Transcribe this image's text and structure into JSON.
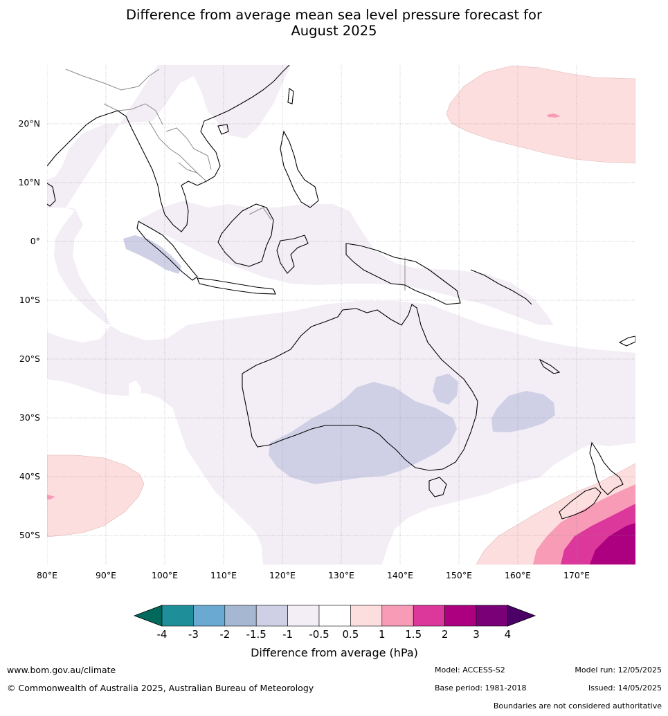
{
  "title": {
    "line1": "Difference from average mean sea level pressure forecast for",
    "line2": "August 2025"
  },
  "map": {
    "lon_ticks": [
      "80°E",
      "90°E",
      "100°E",
      "110°E",
      "120°E",
      "130°E",
      "140°E",
      "150°E",
      "160°E",
      "170°E"
    ],
    "lat_ticks": [
      "20°N",
      "10°N",
      "0°",
      "10°S",
      "20°S",
      "30°S",
      "40°S",
      "50°S"
    ]
  },
  "legend": {
    "title": "Difference from average (hPa)",
    "tick_labels": [
      "-4",
      "-3",
      "-2",
      "-1.5",
      "-1",
      "-0.5",
      "0.5",
      "1",
      "1.5",
      "2",
      "3",
      "4"
    ],
    "colors": {
      "below_min": "#00695c",
      "m4_m3": "#1e8f99",
      "m3_m2": "#6aaad2",
      "m2_m15": "#a6b7d2",
      "m15_m1": "#cfd0e6",
      "m1_m05": "#f3edf6",
      "m05_05": "#ffffff",
      "p05_1": "#fddede",
      "p1_15": "#f79bb7",
      "p15_2": "#dc379a",
      "p2_3": "#ac0080",
      "p3_4": "#7a0077",
      "above_max": "#4b0066"
    }
  },
  "footer": {
    "website": "www.bom.gov.au/climate",
    "copyright": "© Commonwealth of Australia 2025, Australian Bureau of Meteorology",
    "model": "Model: ACCESS-S2",
    "base_period": "Base period: 1981-2018",
    "model_run": "Model run: 12/05/2025",
    "issued": "Issued: 14/05/2025",
    "disclaimer": "Boundaries are not considered authoritative"
  }
}
